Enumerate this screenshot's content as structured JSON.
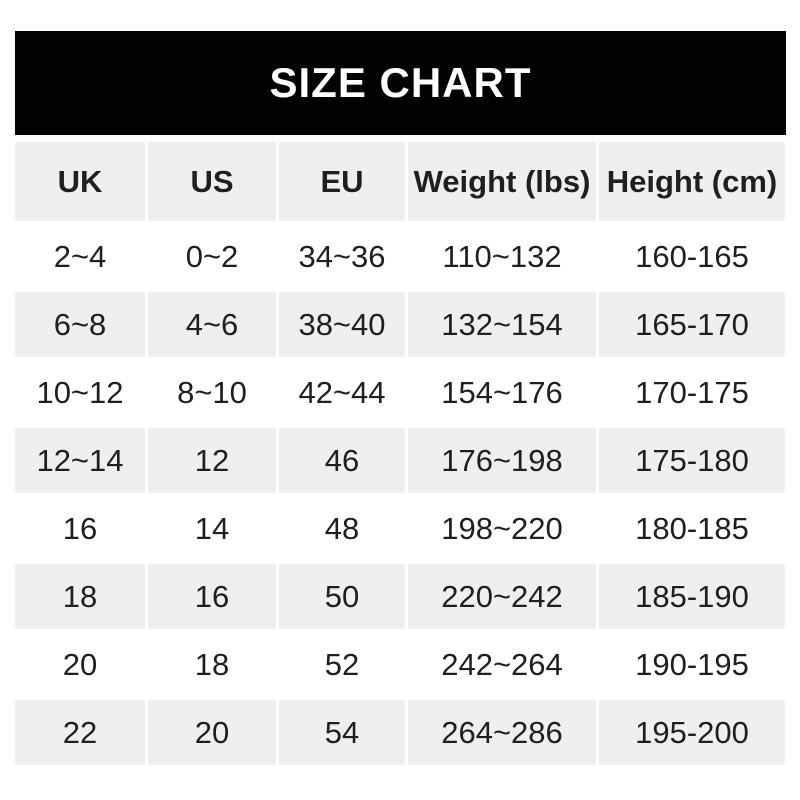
{
  "banner": {
    "title": "SIZE CHART",
    "bg_color": "#020202",
    "text_color": "#ffffff"
  },
  "chart_data": {
    "type": "table",
    "title": "SIZE CHART",
    "columns": [
      "UK",
      "US",
      "EU",
      "Weight (lbs)",
      "Height (cm)"
    ],
    "rows": [
      [
        "2~4",
        "0~2",
        "34~36",
        "110~132",
        "160-165"
      ],
      [
        "6~8",
        "4~6",
        "38~40",
        "132~154",
        "165-170"
      ],
      [
        "10~12",
        "8~10",
        "42~44",
        "154~176",
        "170-175"
      ],
      [
        "12~14",
        "12",
        "46",
        "176~198",
        "175-180"
      ],
      [
        "16",
        "14",
        "48",
        "198~220",
        "180-185"
      ],
      [
        "18",
        "16",
        "50",
        "220~242",
        "185-190"
      ],
      [
        "20",
        "18",
        "52",
        "242~264",
        "190-195"
      ],
      [
        "22",
        "20",
        "54",
        "264~286",
        "195-200"
      ]
    ],
    "layout": {
      "header_bg": "#efefef",
      "alt_row_bg": "#efefef",
      "row_bg": "#ffffff",
      "text_color": "#1f1f1f",
      "grid": "off",
      "zebra_striping": true
    }
  }
}
